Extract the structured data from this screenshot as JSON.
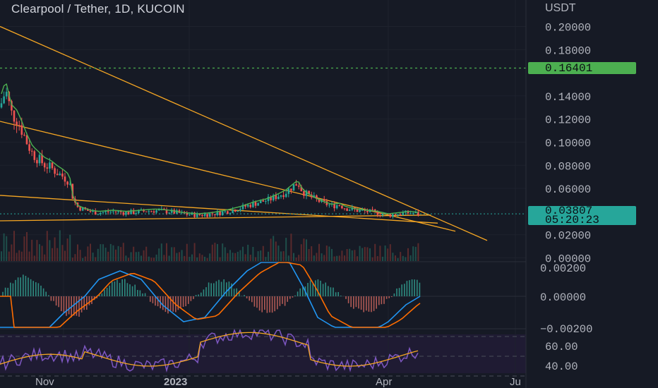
{
  "header": {
    "title": "Clearpool / Tether, 1D, KUCOIN",
    "quote_unit": "USDT"
  },
  "price_axis": {
    "ticks": [
      "0.20000",
      "0.18000",
      "0.14000",
      "0.12000",
      "0.10000",
      "0.08000",
      "0.06000",
      "0.02000",
      "0.00000"
    ],
    "ylim": [
      0,
      0.21
    ]
  },
  "macd_axis": {
    "ticks": [
      "0.00200",
      "0.00000",
      "−0.00200"
    ]
  },
  "rsi_axis": {
    "ticks": [
      "60.00",
      "40.00"
    ]
  },
  "time_axis": {
    "ticks": [
      "Nov",
      "2023",
      "Apr",
      "Ju"
    ]
  },
  "badges": {
    "alert_level": {
      "price": "0.16401",
      "color": "#4caf50"
    },
    "last_price": {
      "price": "0.03807",
      "countdown": "05:20:23",
      "color": "#26a69a"
    }
  },
  "colors": {
    "up": "#26a69a",
    "down": "#ef5350",
    "ma": "#4caf50",
    "trendline": "#f5a623",
    "macd_line": "#2196f3",
    "signal_line": "#ff6d00",
    "rsi": "#7e57c2",
    "rsi_ma": "#f5a623"
  },
  "chart_data": {
    "type": "candlestick",
    "exchange": "KUCOIN",
    "pair": "Clearpool / Tether",
    "interval": "1D",
    "price_levels": {
      "alert": 0.16401,
      "last": 0.03807
    },
    "price_path": [
      [
        0,
        0.13
      ],
      [
        8,
        0.145
      ],
      [
        16,
        0.125
      ],
      [
        24,
        0.12
      ],
      [
        30,
        0.112
      ],
      [
        38,
        0.1
      ],
      [
        46,
        0.09
      ],
      [
        55,
        0.085
      ],
      [
        64,
        0.08
      ],
      [
        72,
        0.078
      ],
      [
        80,
        0.074
      ],
      [
        90,
        0.07
      ],
      [
        98,
        0.066
      ],
      [
        104,
        0.05
      ],
      [
        110,
        0.044
      ],
      [
        118,
        0.042
      ],
      [
        128,
        0.04
      ],
      [
        140,
        0.039
      ],
      [
        160,
        0.04
      ],
      [
        180,
        0.039
      ],
      [
        200,
        0.04
      ],
      [
        220,
        0.041
      ],
      [
        240,
        0.04
      ],
      [
        260,
        0.038
      ],
      [
        280,
        0.037
      ],
      [
        300,
        0.038
      ],
      [
        320,
        0.04
      ],
      [
        340,
        0.043
      ],
      [
        360,
        0.047
      ],
      [
        380,
        0.05
      ],
      [
        395,
        0.054
      ],
      [
        405,
        0.057
      ],
      [
        415,
        0.062
      ],
      [
        422,
        0.065
      ],
      [
        428,
        0.058
      ],
      [
        436,
        0.054
      ],
      [
        448,
        0.05
      ],
      [
        460,
        0.047
      ],
      [
        470,
        0.045
      ],
      [
        480,
        0.046
      ],
      [
        490,
        0.043
      ],
      [
        505,
        0.041
      ],
      [
        520,
        0.04
      ],
      [
        535,
        0.039
      ],
      [
        550,
        0.037
      ],
      [
        565,
        0.038
      ],
      [
        580,
        0.039
      ],
      [
        595,
        0.038
      ]
    ],
    "trendlines": [
      {
        "from": [
          0,
          0.2
        ],
        "to": [
          690,
          0.015
        ]
      },
      {
        "from": [
          0,
          0.118
        ],
        "to": [
          645,
          0.023
        ]
      },
      {
        "from": [
          0,
          0.054
        ],
        "to": [
          620,
          0.03
        ]
      },
      {
        "from": [
          0,
          0.032
        ],
        "to": [
          610,
          0.037
        ]
      }
    ]
  }
}
